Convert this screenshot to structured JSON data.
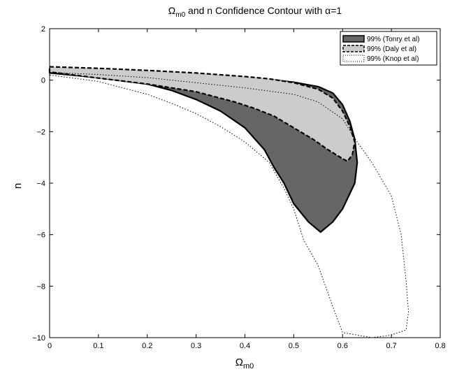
{
  "chart_data": {
    "type": "area",
    "title": {
      "pre": "Ω",
      "sub": "m0",
      "post": " and n Confidence Contour with α=1"
    },
    "xlabel": {
      "pre": "Ω",
      "sub": "m0"
    },
    "ylabel": "n",
    "xlim": [
      0,
      0.8
    ],
    "ylim": [
      -10,
      2
    ],
    "xticks": [
      0,
      0.1,
      0.2,
      0.3,
      0.4,
      0.5,
      0.6,
      0.7,
      0.8
    ],
    "xtick_labels": [
      "0",
      "0.1",
      "0.2",
      "0.3",
      "0.4",
      "0.5",
      "0.6",
      "0.7",
      "0.8"
    ],
    "yticks": [
      2,
      0,
      -2,
      -4,
      -6,
      -8,
      -10
    ],
    "ytick_labels": [
      "2",
      "0",
      "−2",
      "−4",
      "−6",
      "−8",
      "−10"
    ],
    "grid": false,
    "legend_position": "top-right",
    "colors": {
      "tonry_fill": "#666666",
      "daly_fill": "#cccccc",
      "line": "#000000"
    },
    "series": [
      {
        "name": "99% (Tonry et al)",
        "style": "solid",
        "points": [
          [
            0,
            0.45
          ],
          [
            0.1,
            0.4
          ],
          [
            0.2,
            0.32
          ],
          [
            0.3,
            0.22
          ],
          [
            0.4,
            0.1
          ],
          [
            0.45,
            0.02
          ],
          [
            0.5,
            -0.08
          ],
          [
            0.55,
            -0.25
          ],
          [
            0.58,
            -0.5
          ],
          [
            0.6,
            -0.95
          ],
          [
            0.615,
            -1.6
          ],
          [
            0.625,
            -2.3
          ],
          [
            0.63,
            -3.2
          ],
          [
            0.625,
            -4.0
          ],
          [
            0.6,
            -5.0
          ],
          [
            0.58,
            -5.5
          ],
          [
            0.555,
            -5.9
          ],
          [
            0.53,
            -5.5
          ],
          [
            0.5,
            -4.8
          ],
          [
            0.48,
            -4.0
          ],
          [
            0.46,
            -3.4
          ],
          [
            0.44,
            -2.7
          ],
          [
            0.4,
            -1.85
          ],
          [
            0.35,
            -1.2
          ],
          [
            0.3,
            -0.75
          ],
          [
            0.25,
            -0.4
          ],
          [
            0.2,
            -0.15
          ],
          [
            0.1,
            0.1
          ],
          [
            0,
            0.28
          ]
        ]
      },
      {
        "name": "99% (Daly et al)",
        "style": "dashed",
        "points": [
          [
            0,
            0.52
          ],
          [
            0.1,
            0.46
          ],
          [
            0.2,
            0.38
          ],
          [
            0.3,
            0.28
          ],
          [
            0.4,
            0.14
          ],
          [
            0.45,
            0.05
          ],
          [
            0.5,
            -0.1
          ],
          [
            0.55,
            -0.35
          ],
          [
            0.58,
            -0.7
          ],
          [
            0.6,
            -1.2
          ],
          [
            0.615,
            -1.8
          ],
          [
            0.625,
            -2.4
          ],
          [
            0.62,
            -2.9
          ],
          [
            0.61,
            -3.15
          ],
          [
            0.6,
            -3.05
          ],
          [
            0.57,
            -2.7
          ],
          [
            0.54,
            -2.3
          ],
          [
            0.5,
            -1.85
          ],
          [
            0.46,
            -1.4
          ],
          [
            0.42,
            -1.1
          ],
          [
            0.38,
            -0.85
          ],
          [
            0.3,
            -0.45
          ],
          [
            0.2,
            -0.15
          ],
          [
            0.1,
            0.08
          ],
          [
            0,
            0.32
          ]
        ]
      },
      {
        "name": "99% (Knop et al)",
        "style": "dotted",
        "points": [
          [
            0,
            0.3
          ],
          [
            0.1,
            0.22
          ],
          [
            0.2,
            0.1
          ],
          [
            0.3,
            -0.1
          ],
          [
            0.4,
            -0.3
          ],
          [
            0.5,
            -0.55
          ],
          [
            0.55,
            -0.85
          ],
          [
            0.6,
            -1.5
          ],
          [
            0.63,
            -2.4
          ],
          [
            0.66,
            -3.2
          ],
          [
            0.7,
            -4.5
          ],
          [
            0.72,
            -6.0
          ],
          [
            0.73,
            -7.8
          ],
          [
            0.735,
            -9.0
          ],
          [
            0.73,
            -9.7
          ],
          [
            0.7,
            -9.9
          ],
          [
            0.66,
            -10
          ],
          [
            0.6,
            -9.8
          ],
          [
            0.58,
            -8.8
          ],
          [
            0.55,
            -7.2
          ],
          [
            0.52,
            -6.2
          ],
          [
            0.5,
            -5.0
          ],
          [
            0.48,
            -4.2
          ],
          [
            0.45,
            -3.2
          ],
          [
            0.4,
            -2.4
          ],
          [
            0.35,
            -1.8
          ],
          [
            0.3,
            -1.3
          ],
          [
            0.25,
            -0.9
          ],
          [
            0.2,
            -0.55
          ],
          [
            0.1,
            -0.05
          ],
          [
            0,
            0.2
          ]
        ]
      }
    ]
  }
}
